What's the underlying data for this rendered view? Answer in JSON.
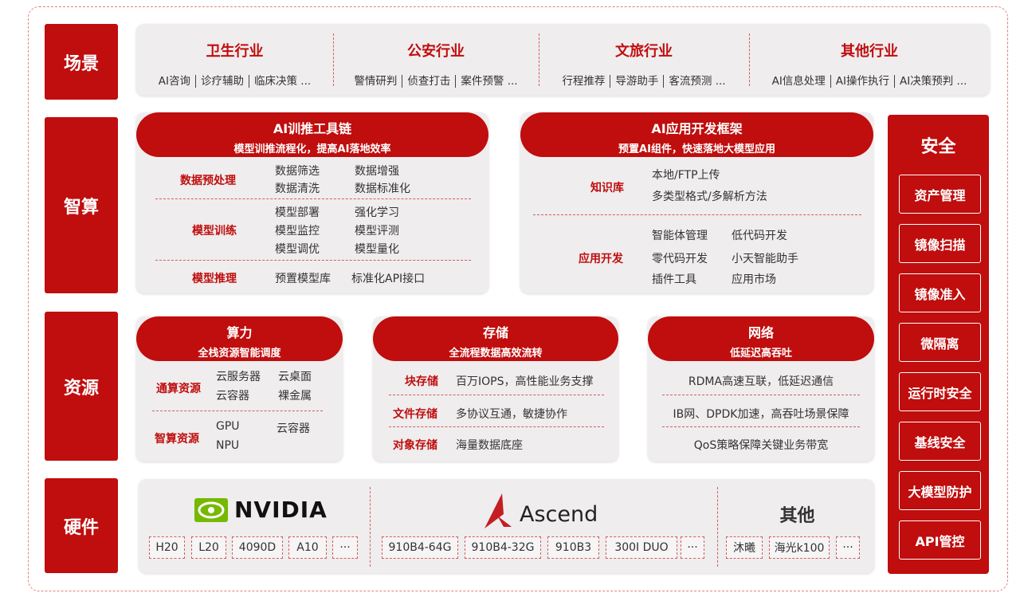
{
  "rows": {
    "scene": "场景",
    "compute": "智算",
    "resource": "资源",
    "hardware": "硬件"
  },
  "scene": [
    {
      "title": "卫生行业",
      "items": [
        "AI咨询",
        "诊疗辅助",
        "临床决策 ..."
      ]
    },
    {
      "title": "公安行业",
      "items": [
        "警情研判",
        "侦查打击",
        "案件预警 ..."
      ]
    },
    {
      "title": "文旅行业",
      "items": [
        "行程推荐",
        "导游助手",
        "客流预测 ..."
      ]
    },
    {
      "title": "其他行业",
      "items": [
        "AI信息处理",
        "AI操作执行",
        "AI决策预判 ..."
      ]
    }
  ],
  "toolchain": {
    "title": "AI训推工具链",
    "subtitle": "模型训推流程化，提高AI落地效率",
    "groups": [
      {
        "label": "数据预处理",
        "items": [
          "数据筛选",
          "数据增强",
          "数据清洗",
          "数据标准化"
        ]
      },
      {
        "label": "模型训练",
        "items": [
          "模型部署",
          "强化学习",
          "模型监控",
          "模型评测",
          "模型调优",
          "模型量化"
        ]
      },
      {
        "label": "模型推理",
        "items": [
          "预置模型库",
          "标准化API接口"
        ]
      }
    ]
  },
  "appframework": {
    "title": "AI应用开发框架",
    "subtitle": "预置AI组件，快速落地大模型应用",
    "groups": [
      {
        "label": "知识库",
        "items": [
          "本地/FTP上传",
          "多类型格式/多解析方法"
        ]
      },
      {
        "label": "应用开发",
        "items": [
          "智能体管理",
          "低代码开发",
          "零代码开发",
          "小天智能助手",
          "插件工具",
          "应用市场"
        ]
      }
    ]
  },
  "compute_res": {
    "title": "算力",
    "subtitle": "全栈资源智能调度",
    "groups": [
      {
        "label": "通算资源",
        "items": [
          "云服务器",
          "云桌面",
          "云容器",
          "裸金属"
        ]
      },
      {
        "label": "智算资源",
        "items": [
          "GPU",
          "云容器",
          "NPU"
        ]
      }
    ]
  },
  "storage": {
    "title": "存储",
    "subtitle": "全流程数据高效流转",
    "rows": [
      {
        "label": "块存储",
        "text": "百万IOPS，高性能业务支撑"
      },
      {
        "label": "文件存储",
        "text": "多协议互通，敏捷协作"
      },
      {
        "label": "对象存储",
        "text": "海量数据底座"
      }
    ]
  },
  "network": {
    "title": "网络",
    "subtitle": "低延迟高吞吐",
    "rows": [
      "RDMA高速互联，低延迟通信",
      "IB网、DPDK加速，高吞吐场景保障",
      "QoS策略保障关键业务带宽"
    ]
  },
  "hardware": {
    "nvidia": {
      "logo": "NVIDIA",
      "chips": [
        "H20",
        "L20",
        "4090D",
        "A10",
        "···"
      ]
    },
    "ascend": {
      "logo": "Ascend",
      "chips": [
        "910B4-64G",
        "910B4-32G",
        "910B3",
        "300I DUO",
        "···"
      ]
    },
    "other": {
      "title": "其他",
      "chips": [
        "沐曦",
        "海光k100",
        "···"
      ]
    }
  },
  "security": {
    "title": "安全",
    "items": [
      "资产管理",
      "镜像扫描",
      "镜像准入",
      "微隔离",
      "运行时安全",
      "基线安全",
      "大模型防护",
      "API管控"
    ]
  },
  "colors": {
    "brand": "#c00d0d",
    "panel": "#efedee",
    "nvidia": "#76b900"
  }
}
